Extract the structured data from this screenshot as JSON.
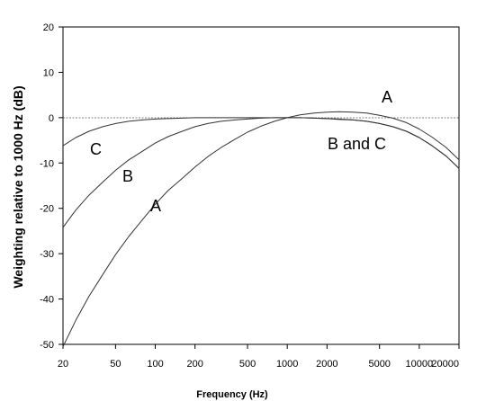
{
  "chart_data": {
    "type": "line",
    "title": "",
    "xlabel": "Frequency (Hz)",
    "ylabel": "Weighting relative to 1000 Hz (dB)",
    "x_scale": "log",
    "xlim": [
      20,
      20000
    ],
    "ylim": [
      -50,
      20
    ],
    "x_ticks": [
      20,
      50,
      100,
      200,
      500,
      1000,
      2000,
      5000,
      10000,
      20000
    ],
    "x_tick_labels": [
      "20",
      "50",
      "100",
      "200",
      "500",
      "1000",
      "2000",
      "5000",
      "10000",
      "20000"
    ],
    "y_ticks": [
      20,
      10,
      0,
      -10,
      -20,
      -30,
      -40,
      -50
    ],
    "y_tick_labels": [
      "20",
      "10",
      "0",
      "-10",
      "-20",
      "-30",
      "-40",
      "-50"
    ],
    "grid": false,
    "reference_line": {
      "y": 0,
      "style": "dashed"
    },
    "series": [
      {
        "name": "A",
        "x": [
          20,
          25,
          31.5,
          40,
          50,
          63,
          80,
          100,
          125,
          160,
          200,
          250,
          315,
          400,
          500,
          630,
          800,
          1000,
          1250,
          1600,
          2000,
          2500,
          3150,
          4000,
          5000,
          6300,
          8000,
          10000,
          12500,
          16000,
          20000
        ],
        "y": [
          -50.5,
          -44.7,
          -39.4,
          -34.6,
          -30.2,
          -26.2,
          -22.5,
          -19.1,
          -16.1,
          -13.4,
          -10.9,
          -8.6,
          -6.6,
          -4.8,
          -3.2,
          -1.9,
          -0.8,
          0,
          0.6,
          1.0,
          1.2,
          1.3,
          1.2,
          1.0,
          0.5,
          -0.1,
          -1.1,
          -2.5,
          -4.3,
          -6.6,
          -9.3
        ]
      },
      {
        "name": "B",
        "x": [
          20,
          25,
          31.5,
          40,
          50,
          63,
          80,
          100,
          125,
          160,
          200,
          250,
          315,
          400,
          500,
          630,
          800,
          1000,
          1250,
          1600,
          2000,
          2500,
          3150,
          4000,
          5000,
          6300,
          8000,
          10000,
          12500,
          16000,
          20000
        ],
        "y": [
          -24.2,
          -20.4,
          -17.1,
          -14.2,
          -11.6,
          -9.3,
          -7.4,
          -5.6,
          -4.2,
          -3.0,
          -2.0,
          -1.3,
          -0.8,
          -0.5,
          -0.3,
          -0.1,
          0,
          0,
          0,
          -0.1,
          -0.2,
          -0.4,
          -0.5,
          -0.8,
          -1.3,
          -2.0,
          -3.0,
          -4.4,
          -6.2,
          -8.5,
          -11.2
        ]
      },
      {
        "name": "C",
        "x": [
          20,
          25,
          31.5,
          40,
          50,
          63,
          80,
          100,
          125,
          160,
          200,
          250,
          315,
          400,
          500,
          630,
          800,
          1000,
          1250,
          1600,
          2000,
          2500,
          3150,
          4000,
          5000,
          6300,
          8000,
          10000,
          12500,
          16000,
          20000
        ],
        "y": [
          -6.2,
          -4.4,
          -3.0,
          -2.0,
          -1.3,
          -0.8,
          -0.5,
          -0.3,
          -0.2,
          -0.1,
          0,
          0,
          0,
          0,
          0,
          0,
          0,
          0,
          0,
          -0.1,
          -0.2,
          -0.3,
          -0.5,
          -0.8,
          -1.3,
          -2.0,
          -3.0,
          -4.4,
          -6.2,
          -8.5,
          -11.2
        ]
      }
    ],
    "annotations": [
      "A",
      "A",
      "B",
      "B and C",
      "C"
    ]
  }
}
